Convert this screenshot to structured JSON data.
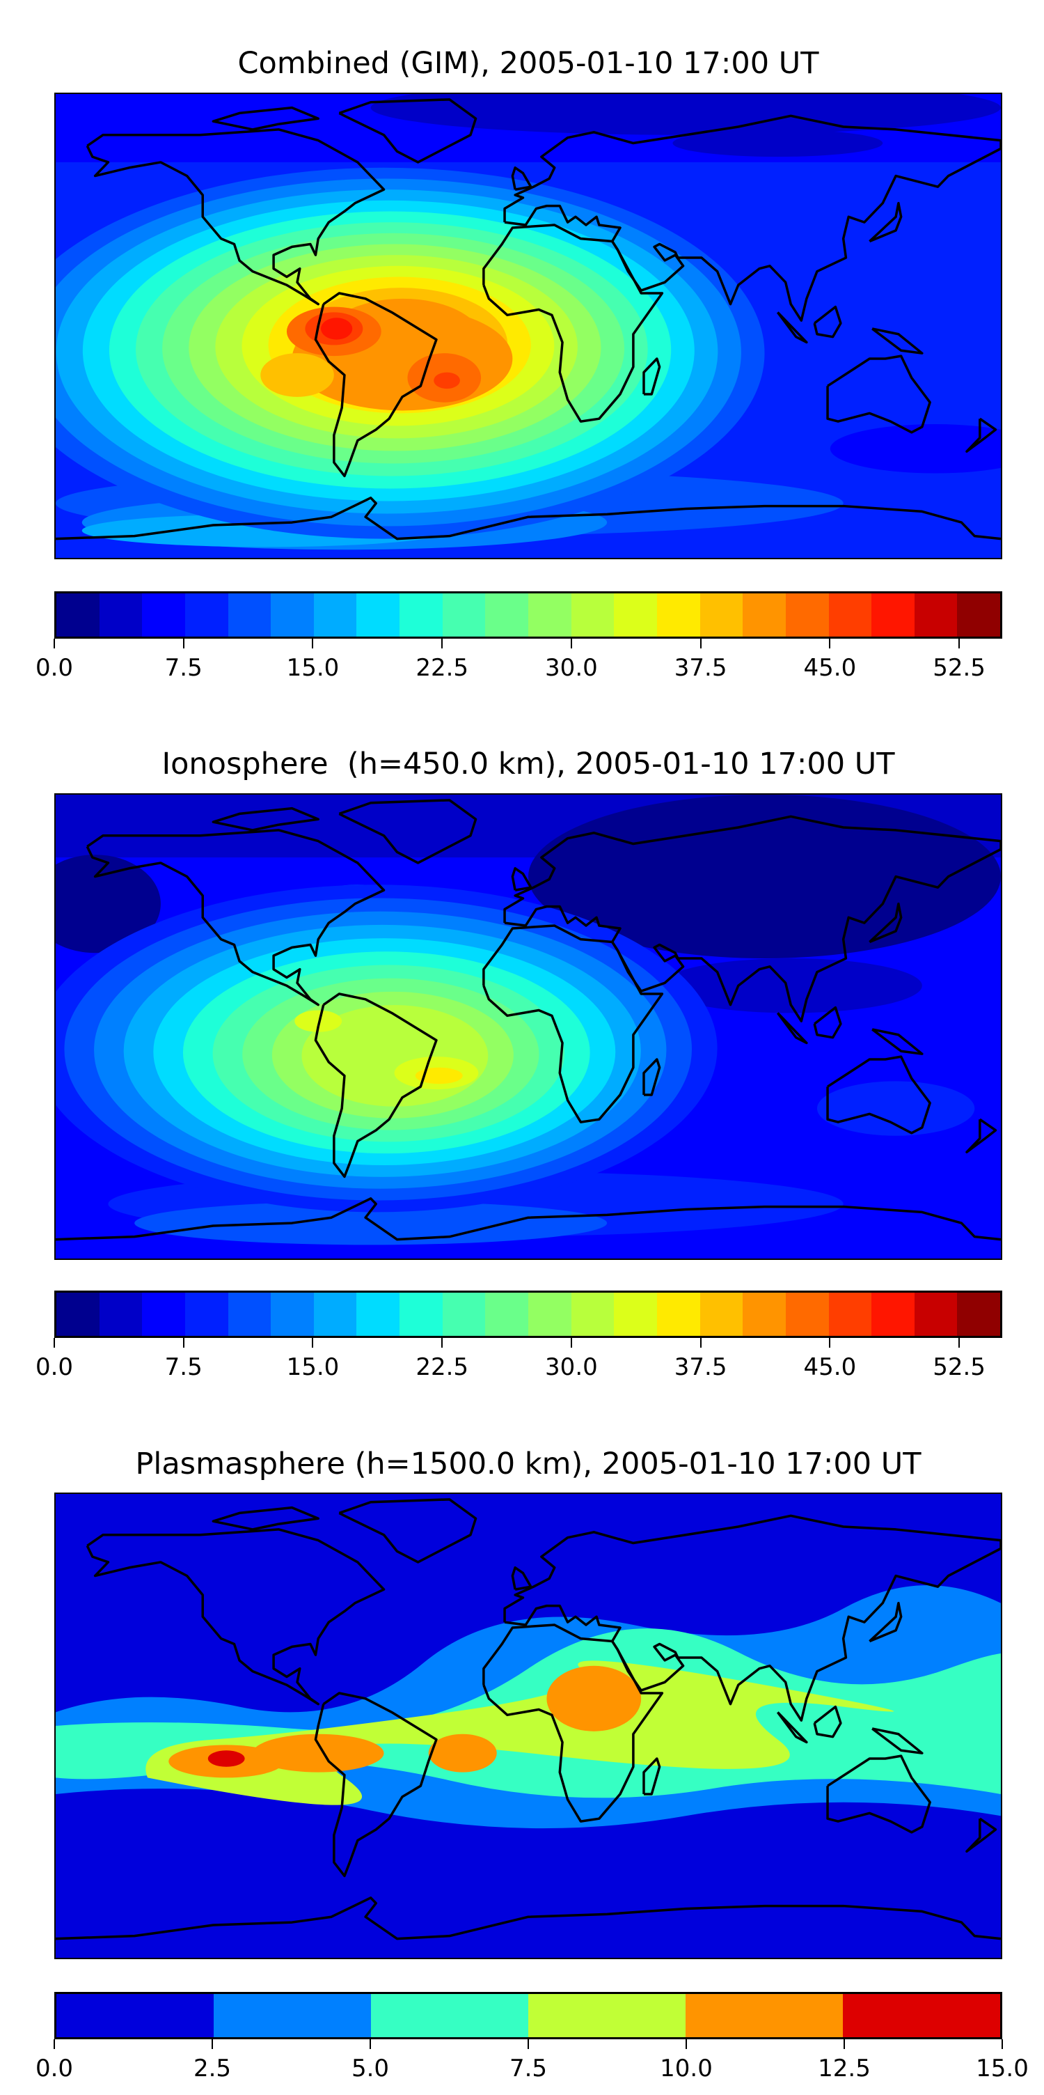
{
  "chart_data": [
    {
      "type": "heatmap",
      "title": "Combined (GIM), 2005-01-10 17:00 UT",
      "xlabel": "",
      "ylabel": "",
      "colorbar": {
        "levels_min": 0.0,
        "levels_max": 55.0,
        "level_step": 2.5,
        "ticks": [
          "0.0",
          "7.5",
          "15.0",
          "22.5",
          "30.0",
          "37.5",
          "45.0",
          "52.5"
        ],
        "tick_values": [
          0,
          7.5,
          15,
          22.5,
          30,
          37.5,
          45,
          52.5
        ],
        "colors": [
          "#00008f",
          "#0000c8",
          "#0000ff",
          "#0020ff",
          "#0050ff",
          "#0080ff",
          "#00acff",
          "#00dcff",
          "#1effd8",
          "#46ffb0",
          "#6aff8a",
          "#93ff62",
          "#b8ff3c",
          "#dcff1a",
          "#ffea00",
          "#ffc000",
          "#ff9400",
          "#ff6a00",
          "#ff3e00",
          "#ff1600",
          "#c80000",
          "#900000"
        ]
      },
      "peak_value_approx": 47.5,
      "peak_location": "South America"
    },
    {
      "type": "heatmap",
      "title": "Ionosphere  (h=450.0 km), 2005-01-10 17:00 UT",
      "xlabel": "",
      "ylabel": "",
      "colorbar": {
        "levels_min": 0.0,
        "levels_max": 55.0,
        "level_step": 2.5,
        "ticks": [
          "0.0",
          "7.5",
          "15.0",
          "22.5",
          "30.0",
          "37.5",
          "45.0",
          "52.5"
        ],
        "tick_values": [
          0,
          7.5,
          15,
          22.5,
          30,
          37.5,
          45,
          52.5
        ],
        "colors": [
          "#00008f",
          "#0000c8",
          "#0000ff",
          "#0020ff",
          "#0050ff",
          "#0080ff",
          "#00acff",
          "#00dcff",
          "#1effd8",
          "#46ffb0",
          "#6aff8a",
          "#93ff62",
          "#b8ff3c",
          "#dcff1a",
          "#ffea00",
          "#ffc000",
          "#ff9400",
          "#ff6a00",
          "#ff3e00",
          "#ff1600",
          "#c80000",
          "#900000"
        ]
      },
      "peak_value_approx": 35.0,
      "peak_location": "South America / South Atlantic"
    },
    {
      "type": "heatmap",
      "title": "Plasmasphere (h=1500.0 km), 2005-01-10 17:00 UT",
      "xlabel": "",
      "ylabel": "",
      "colorbar": {
        "levels_min": 0.0,
        "levels_max": 15.0,
        "level_step": 2.5,
        "ticks": [
          "0.0",
          "2.5",
          "5.0",
          "7.5",
          "10.0",
          "12.5",
          "15.0"
        ],
        "tick_values": [
          0,
          2.5,
          5,
          7.5,
          10,
          12.5,
          15
        ],
        "colors": [
          "#0000dc",
          "#0080ff",
          "#36ffc3",
          "#c1ff36",
          "#ff9400",
          "#dd0000"
        ]
      },
      "peak_value_approx": 12.5,
      "peak_location": "Eastern Pacific"
    }
  ]
}
